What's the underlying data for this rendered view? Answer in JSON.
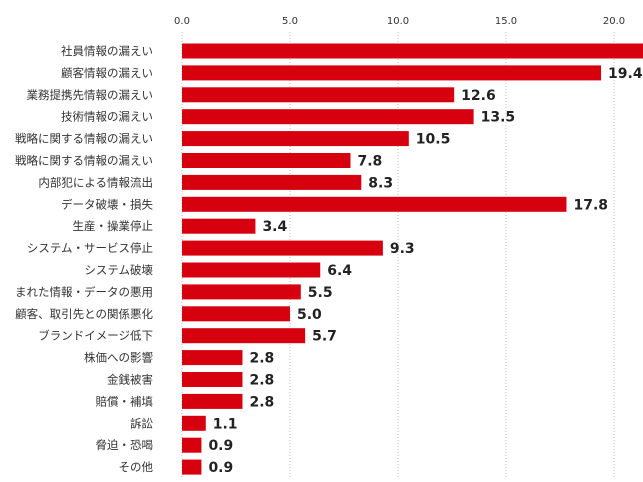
{
  "chart_data": {
    "type": "bar",
    "orientation": "horizontal",
    "title": "",
    "xlabel": "",
    "ylabel": "",
    "xlim": [
      0,
      21.3
    ],
    "ticks": [
      {
        "value": 0,
        "label": "0.0"
      },
      {
        "value": 5,
        "label": "5.0"
      },
      {
        "value": 10,
        "label": "10.0"
      },
      {
        "value": 15,
        "label": "15.0"
      },
      {
        "value": 20,
        "label": "20.0"
      }
    ],
    "grid": true,
    "bar_color": "#d7000f",
    "categories": [
      "社員情報の漏えい",
      "顧客情報の漏えい",
      "業務提携先情報の漏えい",
      "技術情報の漏えい",
      "戦略に関する情報の漏えい",
      "戦略に関する情報の漏えい",
      "内部犯による情報流出",
      "データ破壊・損失",
      "生産・操業停止",
      "システム・サービス停止",
      "システム破壊",
      "まれた情報・データの悪用",
      "顧客、取引先との関係悪化",
      "ブランドイメージ低下",
      "株価への影響",
      "金銭被害",
      "賠償・補填",
      "訴訟",
      "脅迫・恐喝",
      "その他"
    ],
    "values": [
      21.5,
      19.4,
      12.6,
      13.5,
      10.5,
      7.8,
      8.3,
      17.8,
      3.4,
      9.3,
      6.4,
      5.5,
      5.0,
      5.7,
      2.8,
      2.8,
      2.8,
      1.1,
      0.9,
      0.9
    ],
    "value_labels": [
      "",
      "19.4",
      "12.6",
      "13.5",
      "10.5",
      "7.8",
      "8.3",
      "17.8",
      "3.4",
      "9.3",
      "6.4",
      "5.5",
      "5.0",
      "5.7",
      "2.8",
      "2.8",
      "2.8",
      "1.1",
      "0.9",
      "0.9"
    ]
  }
}
